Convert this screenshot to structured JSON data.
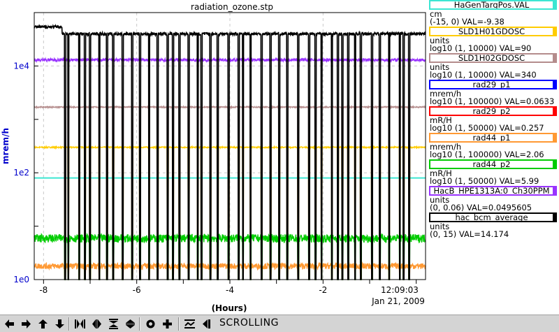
{
  "window": {
    "title": "radiation_ozone.stp"
  },
  "chart_data": {
    "type": "line",
    "title": "radiation_ozone.stp",
    "xlabel": "(Hours)",
    "ylabel": "mrem/h",
    "y_scale": "log",
    "ylim": [
      1,
      100000
    ],
    "xlim": [
      -8.2,
      0.2
    ],
    "x_ticks": [
      "-8",
      "-6",
      "-4",
      "-2"
    ],
    "y_ticks": [
      "1e0",
      "1e2",
      "1e4"
    ],
    "timestamp": {
      "time": "12:09:03",
      "date": "Jan 21, 2009"
    },
    "grid": true,
    "legend_position": "right",
    "series": [
      {
        "name": "HaGenTargPos.VAL",
        "color": "#3ce6d2",
        "pattern": "flat",
        "value": 80
      },
      {
        "name": "SLD1H01GDOSC",
        "color": "#ffcc00",
        "pattern": "dips",
        "value": 300
      },
      {
        "name": "SLD1H02GDOSC",
        "color": "#b48c8c",
        "pattern": "dips",
        "value": 1700
      },
      {
        "name": "rad29_p1",
        "color": "#0000ff",
        "pattern": "none",
        "value": 0
      },
      {
        "name": "rad29_p2",
        "color": "#ff0000",
        "pattern": "none",
        "value": 0
      },
      {
        "name": "rad44_p1",
        "color": "#ff9933",
        "pattern": "noisy-low",
        "value": 1.8
      },
      {
        "name": "rad44_p2",
        "color": "#00cc00",
        "pattern": "noisy-dips",
        "value": 6
      },
      {
        "name": "HacB_HPE1313A:0_Ch30PPM",
        "color": "#9933ff",
        "pattern": "flat-noisy",
        "value": 13000
      },
      {
        "name": "hac_bcm_average",
        "color": "#000000",
        "pattern": "beam-trips",
        "value": 40000
      }
    ]
  },
  "legend": [
    {
      "name": "HaGenTargPos.VAL",
      "color": "#3ce6d2",
      "unit": "cm",
      "range": "(-15, 0) VAL=-9.38"
    },
    {
      "name": "SLD1H01GDOSC",
      "color": "#ffcc00",
      "unit": "units",
      "range": "log10 (1, 10000) VAL=90"
    },
    {
      "name": "SLD1H02GDOSC",
      "color": "#b48c8c",
      "unit": "units",
      "range": "log10 (1, 10000) VAL=340"
    },
    {
      "name": "rad29_p1",
      "color": "#0000ff",
      "unit": "mrem/h",
      "range": "log10 (1, 100000) VAL=0.0633"
    },
    {
      "name": "rad29_p2",
      "color": "#ff0000",
      "unit": "mR/H",
      "range": "log10 (1, 50000) VAL=0.257"
    },
    {
      "name": "rad44_p1",
      "color": "#ff9933",
      "unit": "mrem/h",
      "range": "log10 (1, 100000) VAL=2.06"
    },
    {
      "name": "rad44_p2",
      "color": "#00cc00",
      "unit": "mR/H",
      "range": "log10 (1, 50000) VAL=5.99"
    },
    {
      "name": "HacB_HPE1313A:0_Ch30PPM",
      "color": "#9933ff",
      "unit": "units",
      "range": "(0, 0.06) VAL=0.0495605"
    },
    {
      "name": "hac_bcm_average",
      "color": "#000000",
      "unit": "units",
      "range": "(0, 15) VAL=14.174"
    }
  ],
  "toolbar": {
    "buttons": [
      {
        "name": "arrow-left-icon"
      },
      {
        "name": "arrow-right-icon"
      },
      {
        "name": "arrow-up-icon"
      },
      {
        "name": "arrow-down-icon"
      },
      {
        "name": "expand-horizontal-icon"
      },
      {
        "name": "compress-horizontal-icon"
      },
      {
        "name": "expand-vertical-icon"
      },
      {
        "name": "compress-vertical-icon"
      },
      {
        "name": "circle-icon"
      },
      {
        "name": "plus-icon"
      },
      {
        "name": "autoscale-icon"
      },
      {
        "name": "jump-to-end-icon"
      }
    ],
    "mode_label": "SCROLLING"
  }
}
